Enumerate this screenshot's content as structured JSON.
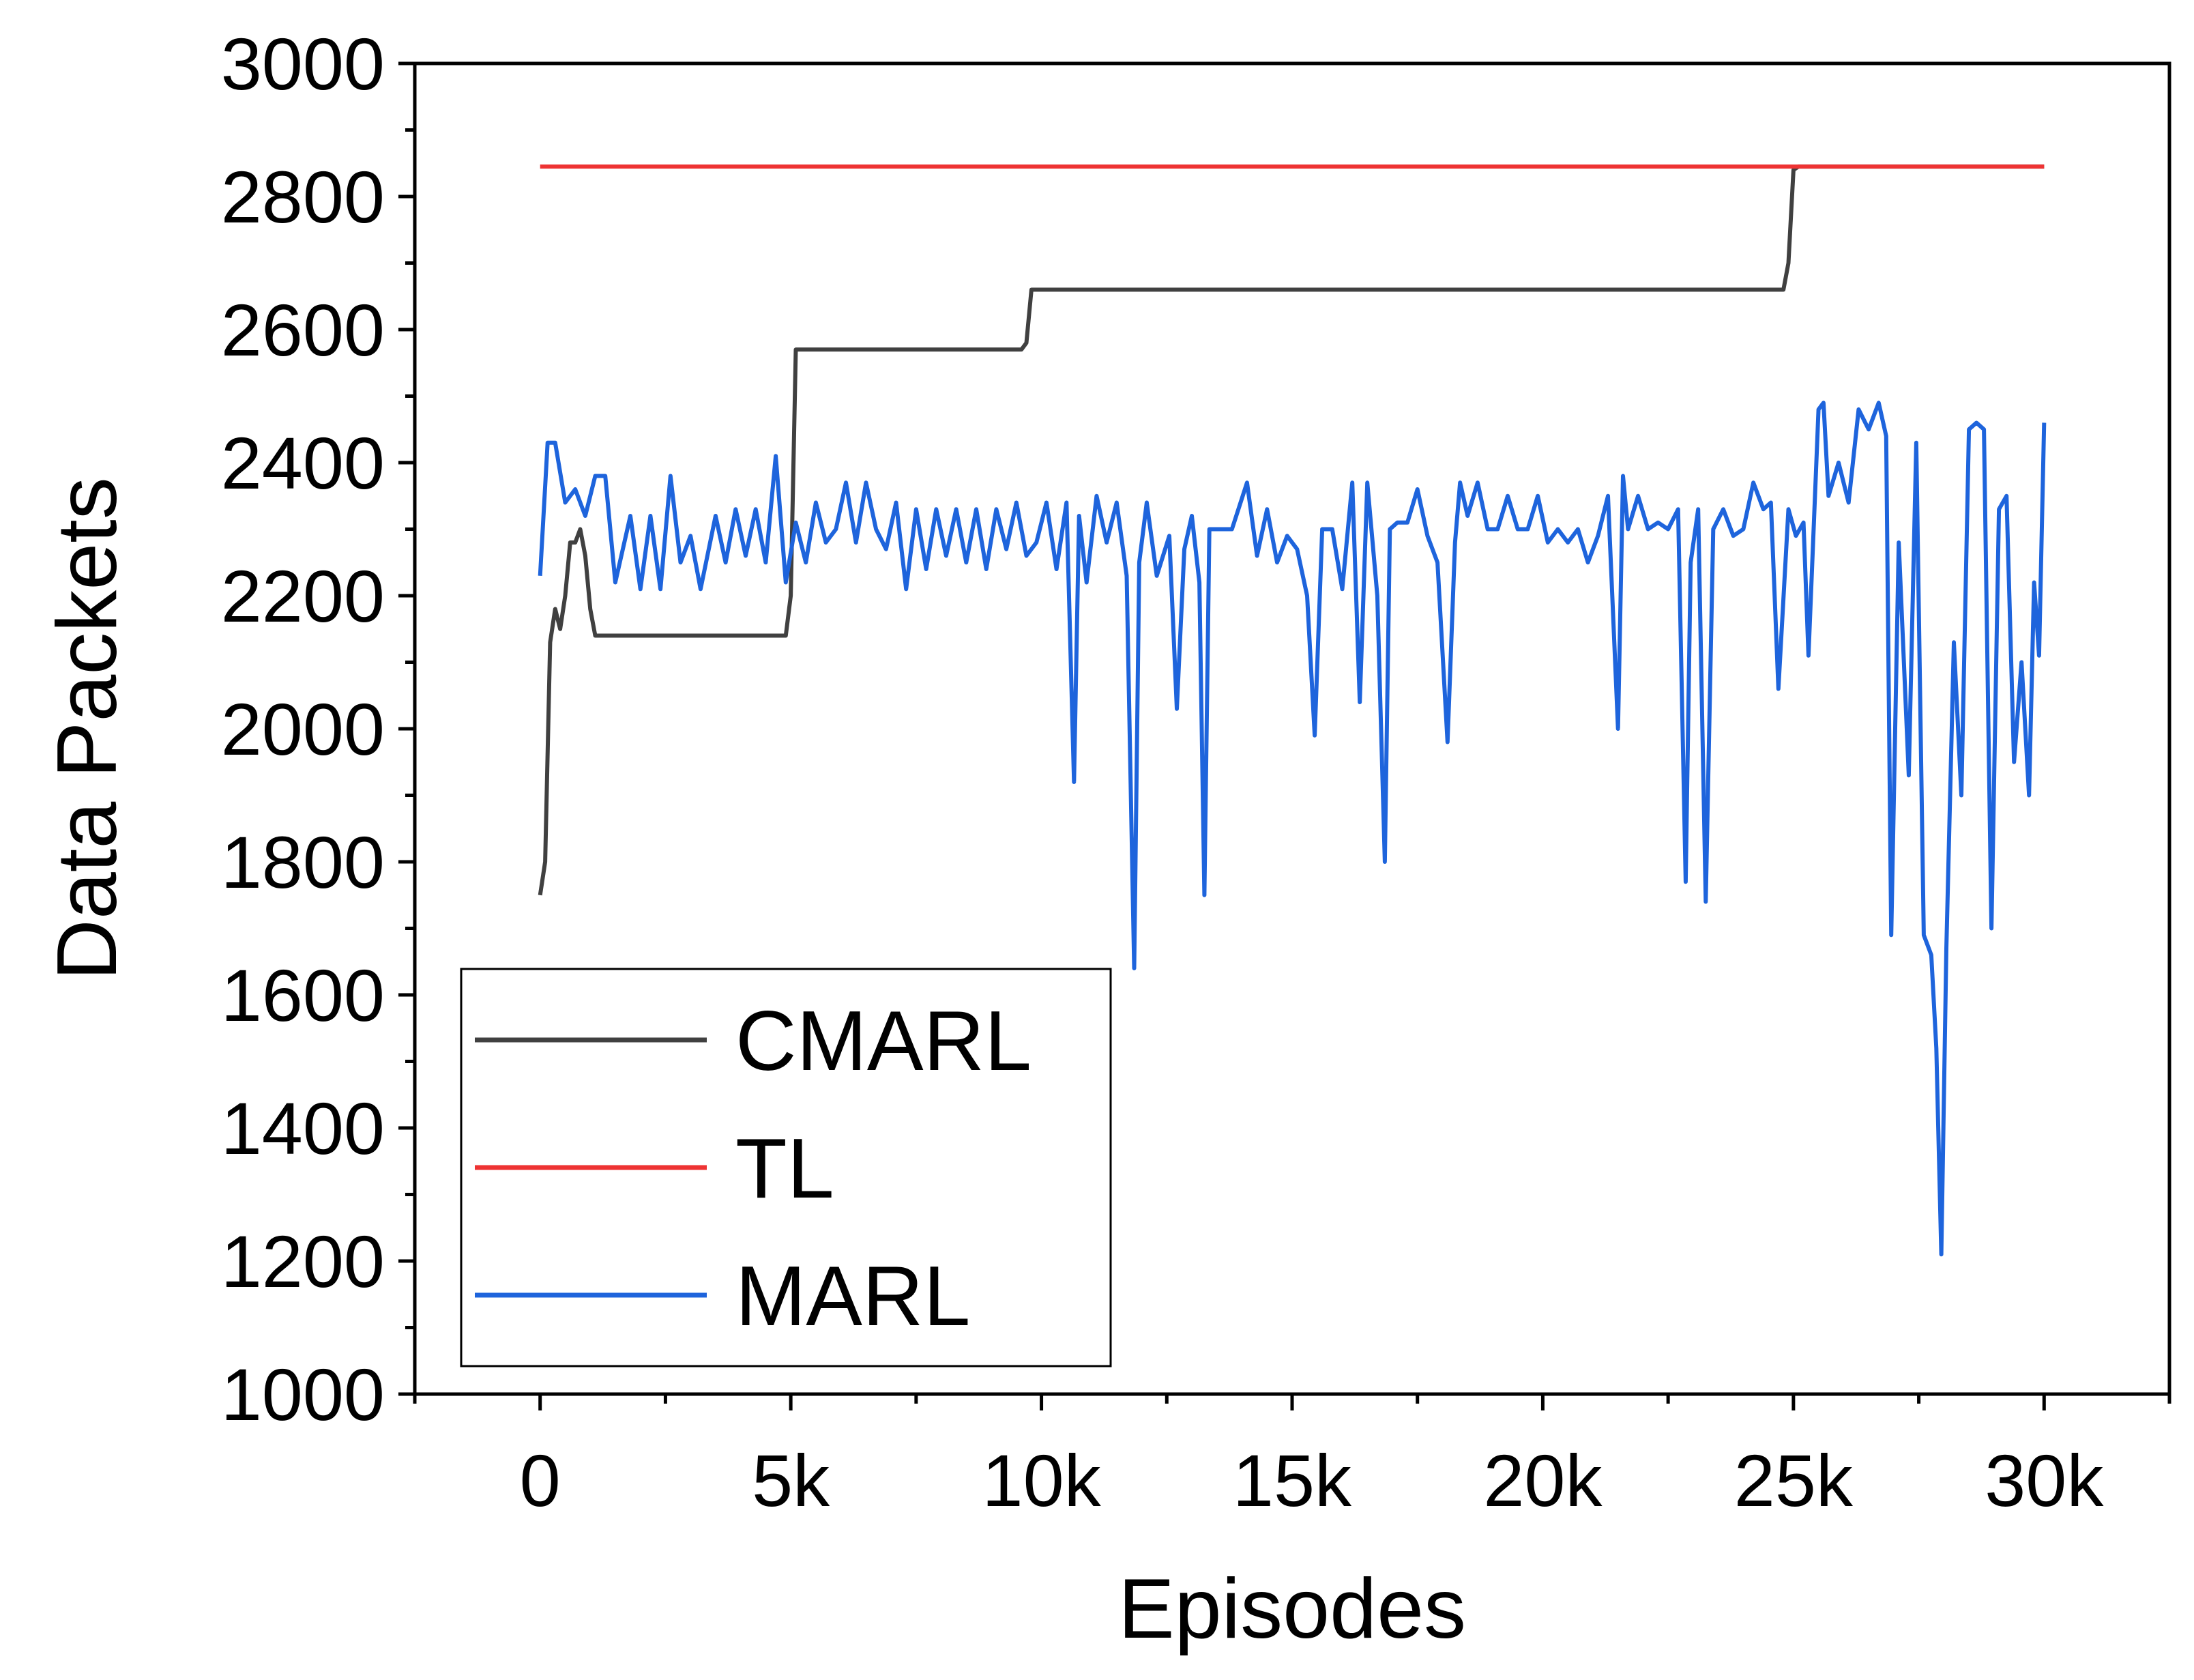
{
  "chart_data": {
    "type": "line",
    "title": "",
    "xlabel": "Episodes",
    "ylabel": "Data Packets",
    "xlim": [
      -2500,
      32500
    ],
    "ylim": [
      1000,
      3000
    ],
    "xticks": [
      0,
      5000,
      10000,
      15000,
      20000,
      25000,
      30000
    ],
    "xtick_labels": [
      "0",
      "5k",
      "10k",
      "15k",
      "20k",
      "25k",
      "30k"
    ],
    "yticks": [
      1000,
      1200,
      1400,
      1600,
      1800,
      2000,
      2200,
      2400,
      2600,
      2800,
      3000
    ],
    "ytick_labels": [
      "1000",
      "1200",
      "1400",
      "1600",
      "1800",
      "2000",
      "2200",
      "2400",
      "2600",
      "2800",
      "3000"
    ],
    "grid": false,
    "legend_position": "bottom-left",
    "series": [
      {
        "name": "CMARL",
        "color": "#404040",
        "x": [
          0,
          100,
          200,
          300,
          400,
          500,
          600,
          700,
          800,
          900,
          1000,
          1100,
          1200,
          1500,
          3000,
          4900,
          5000,
          5100,
          5200,
          7000,
          9600,
          9700,
          9800,
          9900,
          12000,
          15000,
          20000,
          24800,
          24900,
          25000,
          25100,
          30000
        ],
        "values": [
          1750,
          1800,
          2130,
          2180,
          2150,
          2200,
          2280,
          2280,
          2300,
          2260,
          2180,
          2140,
          2140,
          2140,
          2140,
          2140,
          2200,
          2570,
          2570,
          2570,
          2570,
          2580,
          2660,
          2660,
          2660,
          2660,
          2660,
          2660,
          2700,
          2840,
          2845,
          2845
        ]
      },
      {
        "name": "TL",
        "color": "#ee3333",
        "x": [
          0,
          30000
        ],
        "values": [
          2845,
          2845
        ]
      },
      {
        "name": "MARL",
        "color": "#1e64dc",
        "x": [
          0,
          150,
          300,
          500,
          700,
          900,
          1100,
          1300,
          1500,
          1800,
          2000,
          2200,
          2400,
          2600,
          2800,
          3000,
          3200,
          3500,
          3700,
          3900,
          4100,
          4300,
          4500,
          4700,
          4900,
          5100,
          5300,
          5500,
          5700,
          5900,
          6100,
          6300,
          6500,
          6700,
          6900,
          7100,
          7300,
          7500,
          7700,
          7900,
          8100,
          8300,
          8500,
          8700,
          8900,
          9100,
          9300,
          9500,
          9700,
          9900,
          10100,
          10300,
          10500,
          10650,
          10750,
          10900,
          11100,
          11300,
          11500,
          11700,
          11850,
          11950,
          12100,
          12300,
          12550,
          12700,
          12850,
          13000,
          13150,
          13250,
          13350,
          13500,
          13800,
          14100,
          14300,
          14500,
          14700,
          14900,
          15100,
          15300,
          15450,
          15600,
          15800,
          16000,
          16200,
          16350,
          16500,
          16700,
          16850,
          16950,
          17100,
          17300,
          17500,
          17700,
          17900,
          18100,
          18250,
          18350,
          18500,
          18700,
          18900,
          19100,
          19300,
          19500,
          19700,
          19900,
          20100,
          20300,
          20500,
          20700,
          20900,
          21100,
          21300,
          21500,
          21600,
          21700,
          21900,
          22100,
          22300,
          22500,
          22700,
          22850,
          22950,
          23100,
          23250,
          23400,
          23600,
          23800,
          24000,
          24200,
          24400,
          24550,
          24700,
          24900,
          25050,
          25200,
          25300,
          25500,
          25600,
          25700,
          25900,
          26100,
          26300,
          26500,
          26700,
          26850,
          26950,
          27100,
          27300,
          27450,
          27600,
          27750,
          27850,
          27950,
          28050,
          28200,
          28350,
          28500,
          28650,
          28800,
          28950,
          29100,
          29250,
          29400,
          29550,
          29700,
          29800,
          29900,
          30000
        ],
        "values": [
          2230,
          2430,
          2430,
          2340,
          2360,
          2320,
          2380,
          2380,
          2220,
          2320,
          2210,
          2320,
          2210,
          2380,
          2250,
          2290,
          2210,
          2320,
          2250,
          2330,
          2260,
          2330,
          2250,
          2410,
          2220,
          2310,
          2250,
          2340,
          2280,
          2300,
          2370,
          2280,
          2370,
          2300,
          2270,
          2340,
          2210,
          2330,
          2240,
          2330,
          2260,
          2330,
          2250,
          2330,
          2240,
          2330,
          2270,
          2340,
          2260,
          2280,
          2340,
          2240,
          2340,
          1920,
          2320,
          2220,
          2350,
          2280,
          2340,
          2230,
          1640,
          2250,
          2340,
          2230,
          2290,
          2030,
          2270,
          2320,
          2220,
          1750,
          2300,
          2300,
          2300,
          2370,
          2260,
          2330,
          2250,
          2290,
          2270,
          2200,
          1990,
          2300,
          2300,
          2210,
          2370,
          2040,
          2370,
          2200,
          1800,
          2300,
          2310,
          2310,
          2360,
          2290,
          2250,
          1980,
          2280,
          2370,
          2320,
          2370,
          2300,
          2300,
          2350,
          2300,
          2300,
          2350,
          2280,
          2300,
          2280,
          2300,
          2250,
          2290,
          2350,
          2000,
          2380,
          2300,
          2350,
          2300,
          2310,
          2300,
          2330,
          1770,
          2250,
          2330,
          1740,
          2300,
          2330,
          2290,
          2300,
          2370,
          2330,
          2340,
          2060,
          2330,
          2290,
          2310,
          2110,
          2480,
          2490,
          2350,
          2400,
          2340,
          2480,
          2450,
          2490,
          2440,
          1690,
          2280,
          1930,
          2430,
          1690,
          1660,
          1520,
          1210,
          1670,
          2130,
          1900,
          2450,
          2460,
          2450,
          1700,
          2330,
          2350,
          1950,
          2100,
          1900,
          2220,
          2110,
          2460
        ]
      }
    ]
  }
}
